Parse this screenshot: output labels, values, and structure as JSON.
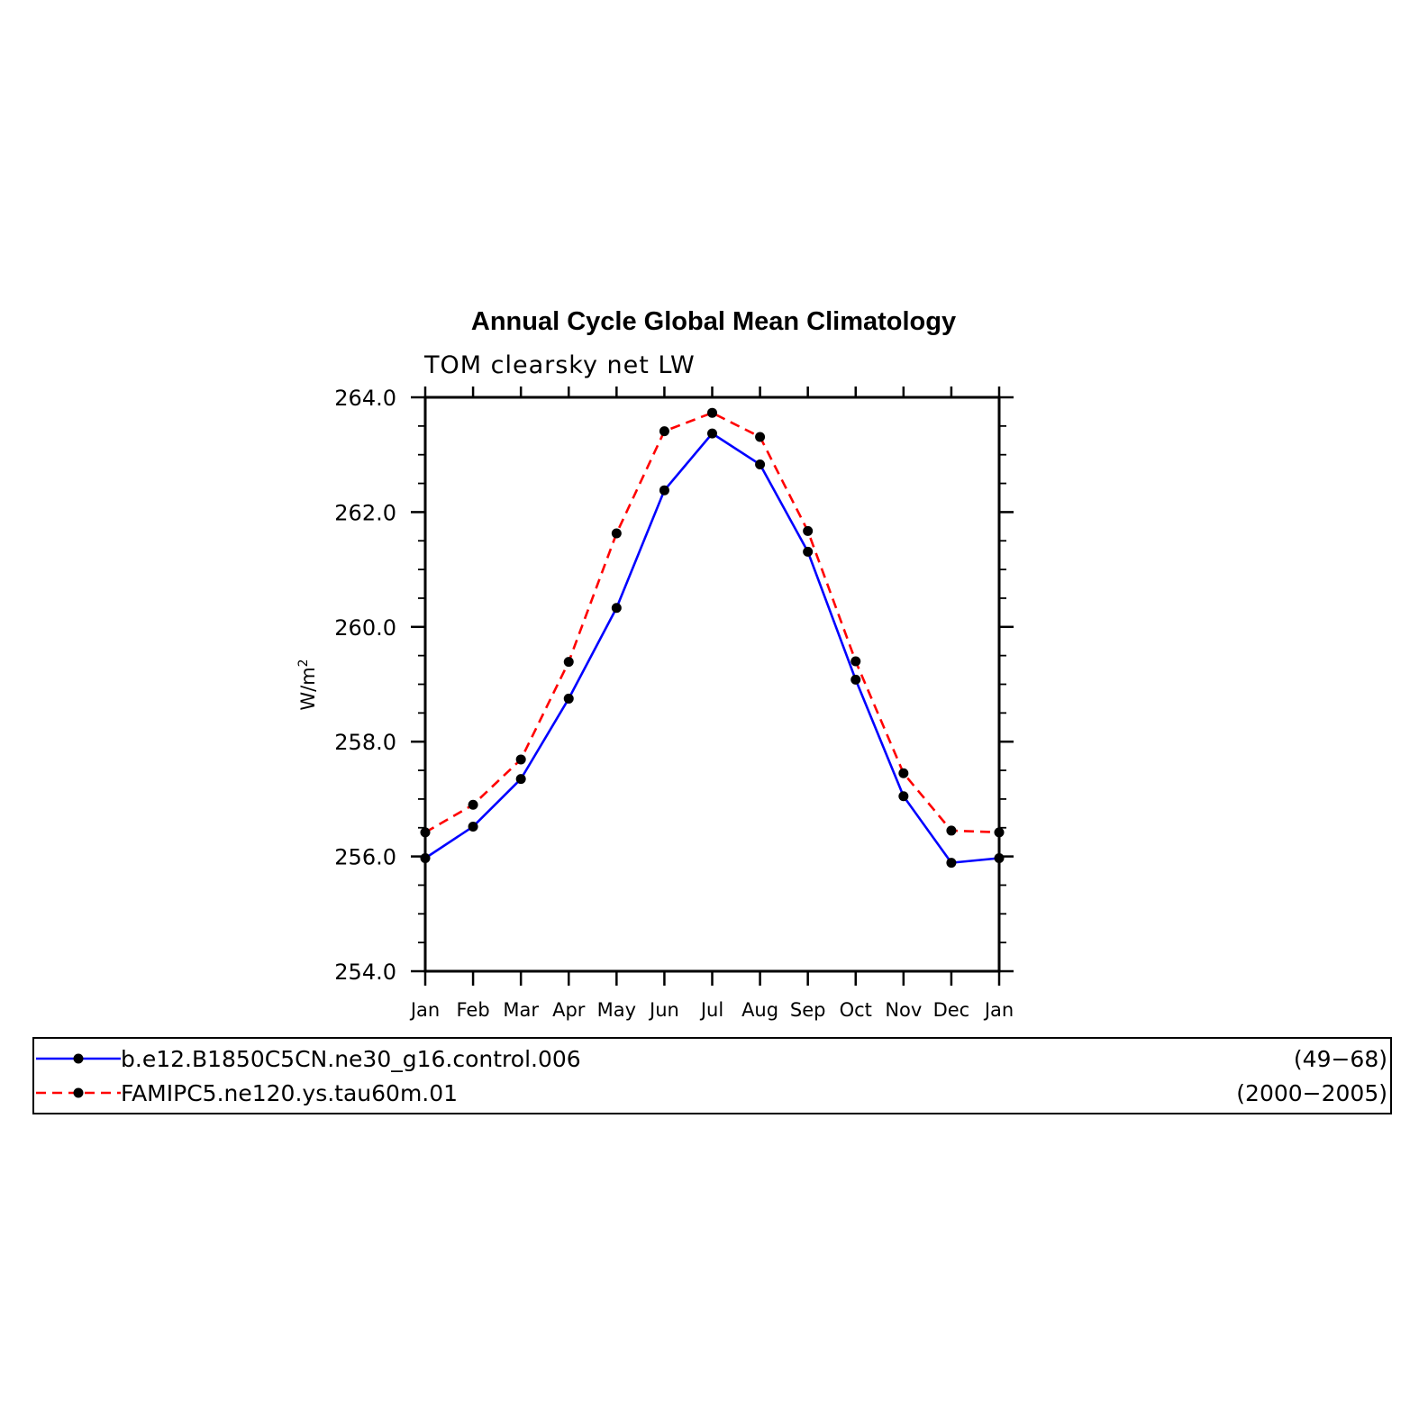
{
  "chart_data": {
    "type": "line",
    "title": "Annual Cycle Global Mean Climatology",
    "subtitle": "TOM clearsky net LW",
    "ylabel": "W/m",
    "ylabel_superscript": "2",
    "categories": [
      "Jan",
      "Feb",
      "Mar",
      "Apr",
      "May",
      "Jun",
      "Jul",
      "Aug",
      "Sep",
      "Oct",
      "Nov",
      "Dec",
      "Jan"
    ],
    "ylim": [
      254.0,
      264.0
    ],
    "yticks": [
      "254.0",
      "256.0",
      "258.0",
      "260.0",
      "262.0",
      "264.0"
    ],
    "grid": false,
    "series": [
      {
        "name": "b.e12.B1850C5CN.ne30_g16.control.006",
        "years": "(49−68)",
        "color": "#0000ff",
        "line_style": "solid",
        "values": [
          255.97,
          256.52,
          257.35,
          258.75,
          260.33,
          262.38,
          263.37,
          262.83,
          261.31,
          259.08,
          257.05,
          255.89,
          255.97
        ]
      },
      {
        "name": "FAMIPC5.ne120.ys.tau60m.01",
        "years": "(2000−2005)",
        "color": "#ff0000",
        "line_style": "dashed",
        "values": [
          256.42,
          256.9,
          257.69,
          259.39,
          261.63,
          263.41,
          263.73,
          263.31,
          261.67,
          259.4,
          257.45,
          256.45,
          256.42
        ]
      }
    ],
    "marker_color": "#000000",
    "legend_position": "below"
  }
}
